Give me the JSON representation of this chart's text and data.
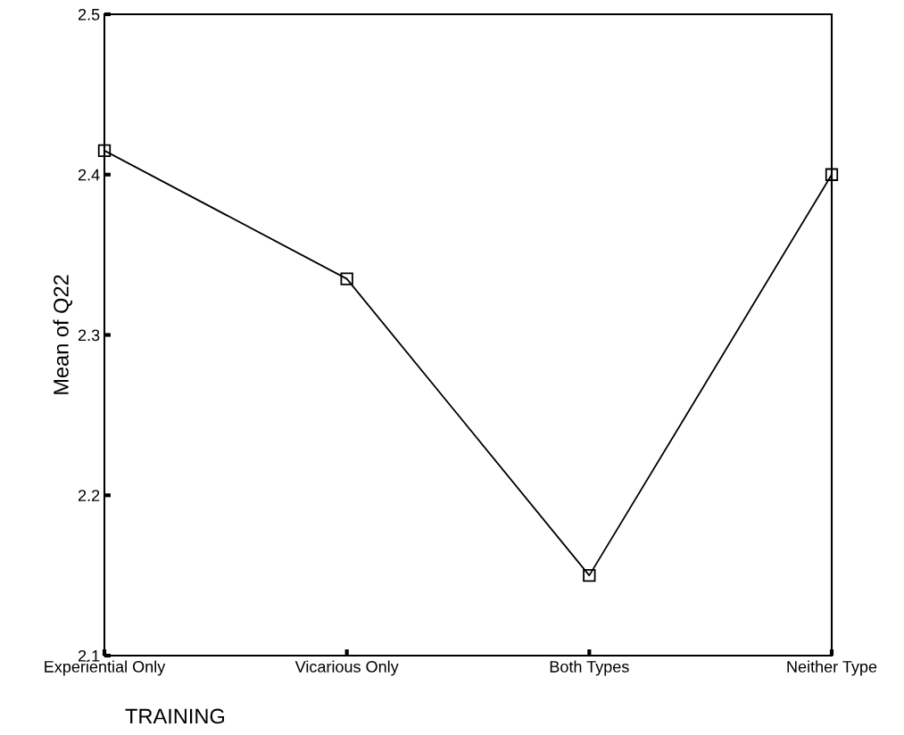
{
  "chart_data": {
    "type": "line",
    "xlabel": "TRAINING",
    "ylabel": "Mean of Q22",
    "categories": [
      "Experiential Only",
      "Vicarious Only",
      "Both Types",
      "Neither Type"
    ],
    "series": [
      {
        "color": "#000000",
        "values": [
          2.415,
          2.335,
          2.15,
          2.4
        ]
      }
    ],
    "ylim": [
      2.1,
      2.5
    ],
    "yticks": [
      2.1,
      2.2,
      2.3,
      2.4,
      2.5
    ],
    "grid": false,
    "marker": "square",
    "line_style": "solid"
  }
}
